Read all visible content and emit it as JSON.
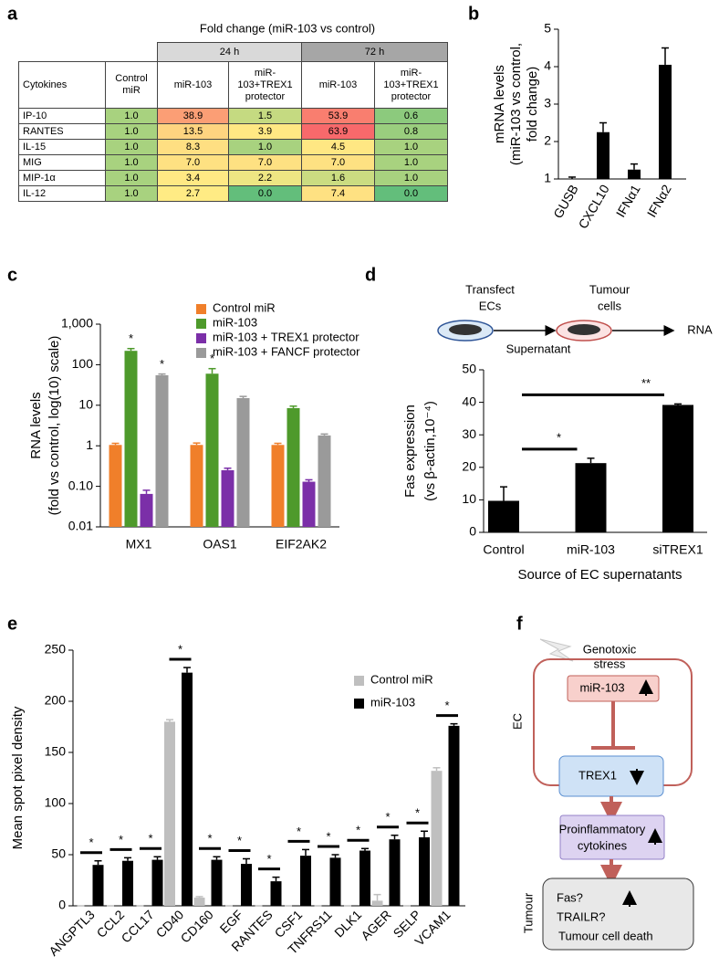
{
  "table": {
    "label": "a",
    "title": "Fold change (miR-103 vs control)",
    "groups": [
      "24 h",
      "72 h"
    ],
    "columns": [
      "Cytokines",
      "Control miR",
      "miR-103",
      "miR-103+TREX1 protector",
      "miR-103",
      "miR-103+TREX1 protector"
    ],
    "rows": [
      [
        "IP-10",
        "1.0",
        "38.9",
        "1.5",
        "53.9",
        "0.6"
      ],
      [
        "RANTES",
        "1.0",
        "13.5",
        "3.9",
        "63.9",
        "0.8"
      ],
      [
        "IL-15",
        "1.0",
        "8.3",
        "1.0",
        "4.5",
        "1.0"
      ],
      [
        "MIG",
        "1.0",
        "7.0",
        "7.0",
        "7.0",
        "1.0"
      ],
      [
        "MIP-1α",
        "1.0",
        "3.4",
        "2.2",
        "1.6",
        "1.0"
      ],
      [
        "IL-12",
        "1.0",
        "2.7",
        "0.0",
        "7.4",
        "0.0"
      ]
    ]
  },
  "chart_data": [
    {
      "type": "bar",
      "label": "b",
      "y_label": [
        "mRNA levels",
        "(miR-103 vs control,",
        "fold change)"
      ],
      "categories": [
        "GUSB",
        "CXCL10",
        "IFNα1",
        "IFNα2"
      ],
      "values": [
        1.0,
        2.25,
        1.25,
        4.05
      ],
      "errors": [
        0.05,
        0.25,
        0.15,
        0.45
      ],
      "color": "#000000",
      "ylim": [
        1,
        5
      ],
      "yticks": [
        1,
        2,
        3,
        4,
        5
      ]
    },
    {
      "type": "bar",
      "label": "c",
      "log_scale": true,
      "y_label": [
        "RNA levels",
        "(fold vs control, log(10) scale)"
      ],
      "categories": [
        "MX1",
        "OAS1",
        "EIF2AK2"
      ],
      "series": [
        {
          "name": "Control miR",
          "color": "#f07f2a",
          "values": [
            1.05,
            1.05,
            1.05
          ],
          "errors": [
            0.1,
            0.12,
            0.1
          ]
        },
        {
          "name": "miR-103",
          "color": "#4e9a2b",
          "values": [
            220,
            60,
            8.5
          ],
          "errors": [
            30,
            20,
            1
          ],
          "significance": [
            "*",
            "*",
            null
          ]
        },
        {
          "name": "miR-103 + TREX1 protector",
          "color": "#7b2fa8",
          "values": [
            0.065,
            0.25,
            0.13
          ],
          "errors": [
            0.015,
            0.03,
            0.015
          ]
        },
        {
          "name": "miR-103 + FANCF protector",
          "color": "#9a9a9a",
          "values": [
            55,
            15,
            1.8
          ],
          "errors": [
            4,
            1.5,
            0.15
          ],
          "significance": [
            "*",
            null,
            null
          ]
        }
      ],
      "ylim": [
        0.01,
        1000
      ],
      "yticks": [
        0.01,
        {
          "value": 0.1,
          "label": "0.10"
        },
        1,
        10,
        100,
        {
          "value": 1000,
          "label": "1,000"
        }
      ]
    },
    {
      "type": "bar",
      "label": "d",
      "schematic": {
        "steps": [
          [
            "Transfect",
            "ECs"
          ],
          [
            "Tumour",
            "cells"
          ],
          "RNA"
        ],
        "arrow_label": "Supernatant"
      },
      "y_label": [
        "Fas expression",
        "(vs β-actin,10⁻⁴)"
      ],
      "x_label": "Source of EC supernatants",
      "categories": [
        "Control",
        "miR-103",
        "siTREX1"
      ],
      "values": [
        9.7,
        21.3,
        39.2
      ],
      "errors": [
        4.3,
        1.5,
        0.3
      ],
      "color": "#000000",
      "comparisons": [
        {
          "label": "*",
          "between": [
            0,
            1
          ]
        },
        {
          "label": "**",
          "between": [
            0,
            2
          ]
        }
      ],
      "ylim": [
        0,
        50
      ],
      "yticks": [
        0,
        10,
        20,
        30,
        40,
        50
      ]
    },
    {
      "type": "bar",
      "label": "e",
      "y_label": [
        "Mean spot pixel density"
      ],
      "categories": [
        "ANGPTL3",
        "CCL2",
        "CCL17",
        "CD40",
        "CD160",
        "EGF",
        "RANTES",
        "CSF1",
        "TNFRS11",
        "DLK1",
        "AGER",
        "SELP",
        "VCAM1"
      ],
      "series": [
        {
          "name": "Control miR",
          "color": "#bfbfbf",
          "values": [
            0,
            0,
            0,
            180,
            8,
            0,
            0,
            0,
            0,
            0,
            5,
            0,
            132
          ],
          "errors": [
            0,
            0,
            0,
            2,
            1,
            0,
            0,
            0,
            0,
            0,
            6,
            0,
            3
          ]
        },
        {
          "name": "miR-103",
          "color": "#000000",
          "values": [
            40,
            44,
            45,
            228,
            45,
            41,
            24,
            49,
            47,
            54,
            65,
            67,
            176
          ],
          "errors": [
            4,
            3,
            3,
            5,
            3,
            5,
            4,
            6,
            3,
            2,
            4,
            6,
            2
          ],
          "significance": [
            "*",
            "*",
            "*",
            "*",
            "*",
            "*",
            "*",
            "*",
            "*",
            "*",
            "*",
            "*",
            "*"
          ]
        }
      ],
      "ylim": [
        0,
        250
      ],
      "yticks": [
        0,
        50,
        100,
        150,
        200,
        250
      ]
    }
  ],
  "diagram": {
    "label": "f",
    "stress": [
      "Genotoxic",
      "stress"
    ],
    "ec_label": "EC",
    "nodes": [
      "miR-103",
      "TREX1",
      [
        "Proinflammatory",
        "cytokines"
      ]
    ],
    "tumour_label": "Tumour",
    "tumour_box": [
      "Fas?",
      "TRAILR?",
      "Tumour cell death"
    ]
  }
}
